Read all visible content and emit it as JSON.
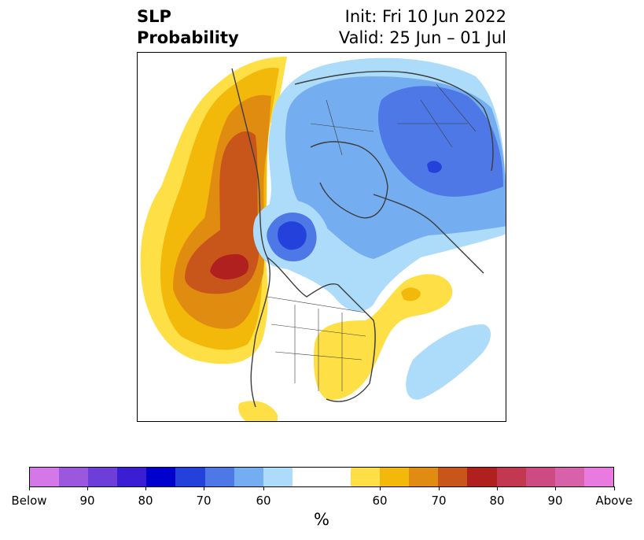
{
  "header": {
    "title_line1": "SLP",
    "title_line2": "Probability",
    "init": "Init: Fri 10 Jun 2022",
    "valid": "Valid: 25 Jun – 01 Jul"
  },
  "colorbar": {
    "unit_label": "%",
    "ticks": [
      "Below",
      "90",
      "80",
      "70",
      "60",
      "60",
      "70",
      "80",
      "90",
      "Above"
    ],
    "colors": [
      "#d478e8",
      "#9b57de",
      "#6e3fd8",
      "#3b1ed3",
      "#0000cc",
      "#2541dc",
      "#4d78e6",
      "#74aef0",
      "#acdcf9",
      "#ffffff",
      "#ffffff",
      "#fee046",
      "#f2b90a",
      "#e08c10",
      "#c8561a",
      "#b0201f",
      "#c23850",
      "#cc4b83",
      "#d862aa",
      "#e87ae0"
    ]
  },
  "map": {
    "colors": {
      "land_line": "#3c3c3c",
      "above_60": "#fee046",
      "above_65": "#f2b90a",
      "above_70": "#e08c10",
      "above_75": "#c8561a",
      "above_80": "#b0201f",
      "below_60": "#acdcf9",
      "below_65": "#74aef0",
      "below_70": "#4d78e6",
      "below_75": "#2541dc"
    }
  }
}
